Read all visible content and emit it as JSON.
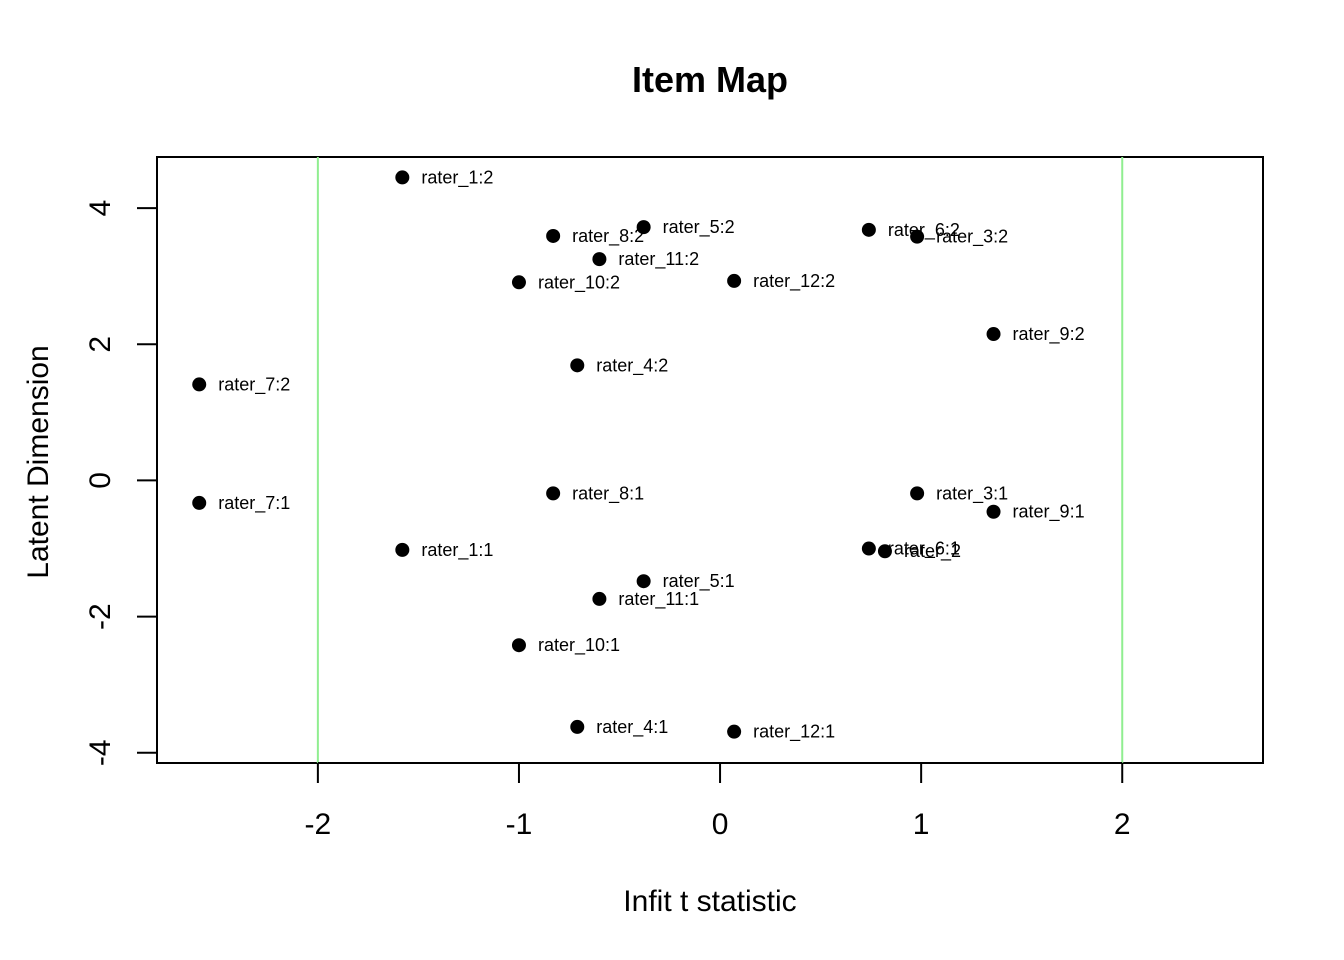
{
  "chart_data": {
    "type": "scatter",
    "title": "Item Map",
    "xlabel": "Infit t statistic",
    "ylabel": "Latent Dimension",
    "xlim": [
      -2.8,
      2.7
    ],
    "ylim": [
      -4.15,
      4.75
    ],
    "xticks": [
      -2,
      -1,
      0,
      1,
      2
    ],
    "yticks": [
      -4,
      -2,
      0,
      2,
      4
    ],
    "reference_lines_x": [
      -2,
      2
    ],
    "reference_line_color": "#90ee90",
    "point_color": "#000000",
    "grid": false,
    "points": [
      {
        "label": "rater_1:2",
        "x": -1.58,
        "y": 4.45
      },
      {
        "label": "rater_5:2",
        "x": -0.38,
        "y": 3.72
      },
      {
        "label": "rater_6:2",
        "x": 0.74,
        "y": 3.68
      },
      {
        "label": "rater_8:2",
        "x": -0.83,
        "y": 3.59
      },
      {
        "label": "rater_3:2",
        "x": 0.98,
        "y": 3.58
      },
      {
        "label": "rater_11:2",
        "x": -0.6,
        "y": 3.25
      },
      {
        "label": "rater_12:2",
        "x": 0.07,
        "y": 2.93
      },
      {
        "label": "rater_10:2",
        "x": -1.0,
        "y": 2.91
      },
      {
        "label": "rater_9:2",
        "x": 1.36,
        "y": 2.15
      },
      {
        "label": "rater_4:2",
        "x": -0.71,
        "y": 1.69
      },
      {
        "label": "rater_7:2",
        "x": -2.59,
        "y": 1.41
      },
      {
        "label": "rater_8:1",
        "x": -0.83,
        "y": -0.19
      },
      {
        "label": "rater_3:1",
        "x": 0.98,
        "y": -0.19
      },
      {
        "label": "rater_7:1",
        "x": -2.59,
        "y": -0.33
      },
      {
        "label": "rater_9:1",
        "x": 1.36,
        "y": -0.46
      },
      {
        "label": "rater_6:1",
        "x": 0.74,
        "y": -1.0
      },
      {
        "label": "rater_1:1",
        "x": -1.58,
        "y": -1.02
      },
      {
        "label": "rater_2",
        "x": 0.82,
        "y": -1.04
      },
      {
        "label": "rater_5:1",
        "x": -0.38,
        "y": -1.48
      },
      {
        "label": "rater_11:1",
        "x": -0.6,
        "y": -1.74
      },
      {
        "label": "rater_10:1",
        "x": -1.0,
        "y": -2.42
      },
      {
        "label": "rater_4:1",
        "x": -0.71,
        "y": -3.62
      },
      {
        "label": "rater_12:1",
        "x": 0.07,
        "y": -3.69
      }
    ]
  }
}
